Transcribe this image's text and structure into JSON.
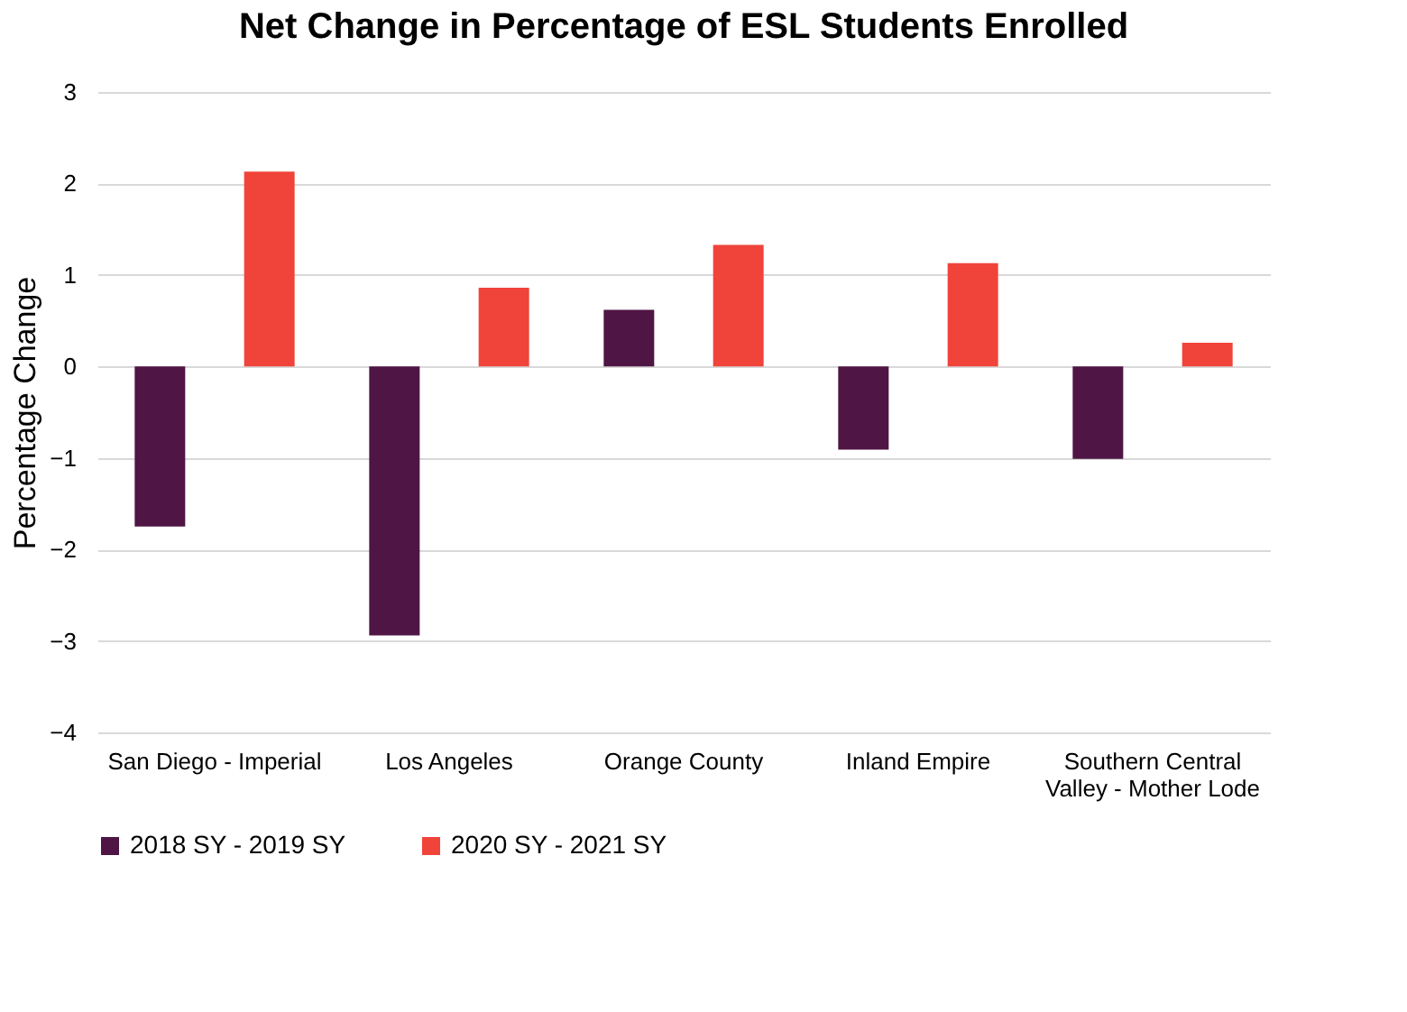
{
  "chart_data": {
    "type": "bar",
    "title": "Net Change in Percentage of ESL Students Enrolled",
    "ylabel": "Percentage Change",
    "categories": [
      "San Diego - Imperial",
      "Los Angeles",
      "Orange County",
      "Inland Empire",
      "Southern Central Valley - Mother Lode"
    ],
    "series": [
      {
        "name": "2018 SY - 2019 SY",
        "color": "#4f1544",
        "values": [
          -1.75,
          -2.94,
          0.62,
          -0.91,
          -1.01
        ]
      },
      {
        "name": "2020 SY - 2021 SY",
        "color": "#f0443a",
        "values": [
          2.13,
          0.86,
          1.33,
          1.13,
          0.26
        ]
      }
    ],
    "ylim": [
      -4,
      3
    ],
    "yticks": [
      -4,
      -3,
      -2,
      -1,
      0,
      1,
      2,
      3
    ],
    "grid": "y",
    "legend": "bottom"
  }
}
